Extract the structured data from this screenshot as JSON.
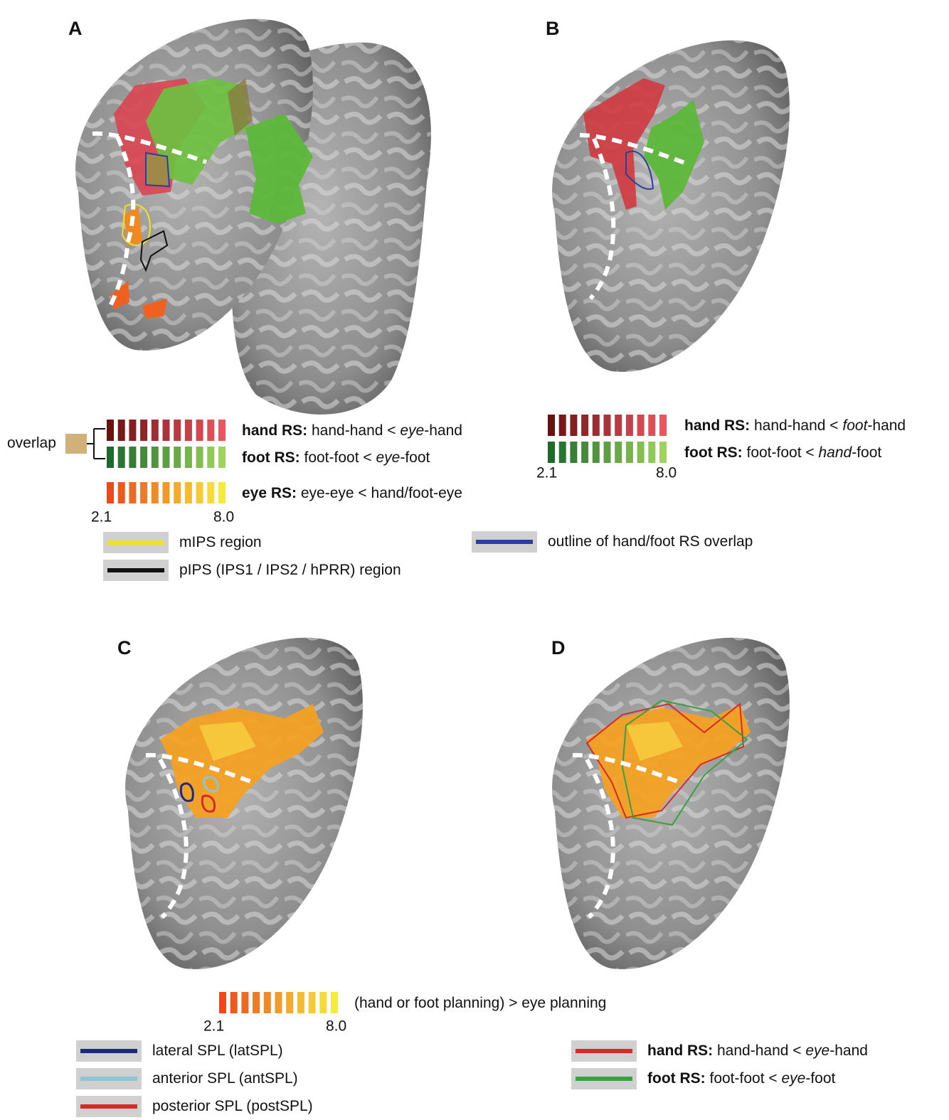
{
  "panel_labels": [
    "A",
    "B",
    "C",
    "D"
  ],
  "legend_a": {
    "overlap": "overlap",
    "scale_min": "2.1",
    "scale_max": "8.0",
    "rows": [
      {
        "colors": [
          "#6a1212",
          "#ea5660"
        ],
        "text": [
          {
            "t": "hand RS:",
            "b": true
          },
          {
            "t": " hand-hand < "
          },
          {
            "t": "eye",
            "i": true
          },
          {
            "t": "-hand"
          }
        ]
      },
      {
        "colors": [
          "#1d6a2c",
          "#9ed35c"
        ],
        "text": [
          {
            "t": "foot RS:",
            "b": true
          },
          {
            "t": " foot-foot < "
          },
          {
            "t": "eye",
            "i": true
          },
          {
            "t": "-foot"
          }
        ]
      },
      {
        "colors": [
          "#ec4a1c",
          "#f6ea3c"
        ],
        "text": [
          {
            "t": "eye RS:",
            "b": true
          },
          {
            "t": " eye-eye < hand/foot-eye"
          }
        ]
      }
    ],
    "outlines": [
      {
        "color": "#f2e21e",
        "text": [
          {
            "t": "mIPS region"
          }
        ]
      },
      {
        "color": "#111111",
        "text": [
          {
            "t": "pIPS (IPS1 / IPS2 / hPRR) region"
          }
        ]
      }
    ]
  },
  "legend_b": {
    "scale_min": "2.1",
    "scale_max": "8.0",
    "rows": [
      {
        "colors": [
          "#6a1212",
          "#ea5660"
        ],
        "text": [
          {
            "t": "hand RS:",
            "b": true
          },
          {
            "t": " hand-hand < "
          },
          {
            "t": "foot",
            "i": true
          },
          {
            "t": "-hand"
          }
        ]
      },
      {
        "colors": [
          "#1d6a2c",
          "#9ed35c"
        ],
        "text": [
          {
            "t": "foot RS:",
            "b": true
          },
          {
            "t": " foot-foot < "
          },
          {
            "t": "hand",
            "i": true
          },
          {
            "t": "-foot"
          }
        ]
      }
    ],
    "outlines": [
      {
        "color": "#2b3fa0",
        "text": [
          {
            "t": "outline of hand/foot RS overlap"
          }
        ]
      }
    ]
  },
  "legend_c": {
    "scale_min": "2.1",
    "scale_max": "8.0",
    "rows": [
      {
        "colors": [
          "#ec4a1c",
          "#f6ea3c"
        ],
        "text": [
          {
            "t": "(hand or foot planning) > eye planning"
          }
        ]
      }
    ],
    "outlines": [
      {
        "color": "#1e2a80",
        "text": [
          {
            "t": "lateral SPL (latSPL)"
          }
        ]
      },
      {
        "color": "#8ec4d6",
        "text": [
          {
            "t": "anterior SPL (antSPL)"
          }
        ]
      },
      {
        "color": "#d42a2a",
        "text": [
          {
            "t": "posterior SPL (postSPL)"
          }
        ]
      }
    ]
  },
  "legend_d": {
    "outlines": [
      {
        "color": "#d42a2a",
        "text": [
          {
            "t": "hand RS:",
            "b": true
          },
          {
            "t": " hand-hand < "
          },
          {
            "t": "eye",
            "i": true
          },
          {
            "t": "-hand"
          }
        ]
      },
      {
        "color": "#3aa040",
        "text": [
          {
            "t": "foot RS:",
            "b": true
          },
          {
            "t": " foot-foot < "
          },
          {
            "t": "eye",
            "i": true
          },
          {
            "t": "-foot"
          }
        ]
      }
    ]
  }
}
